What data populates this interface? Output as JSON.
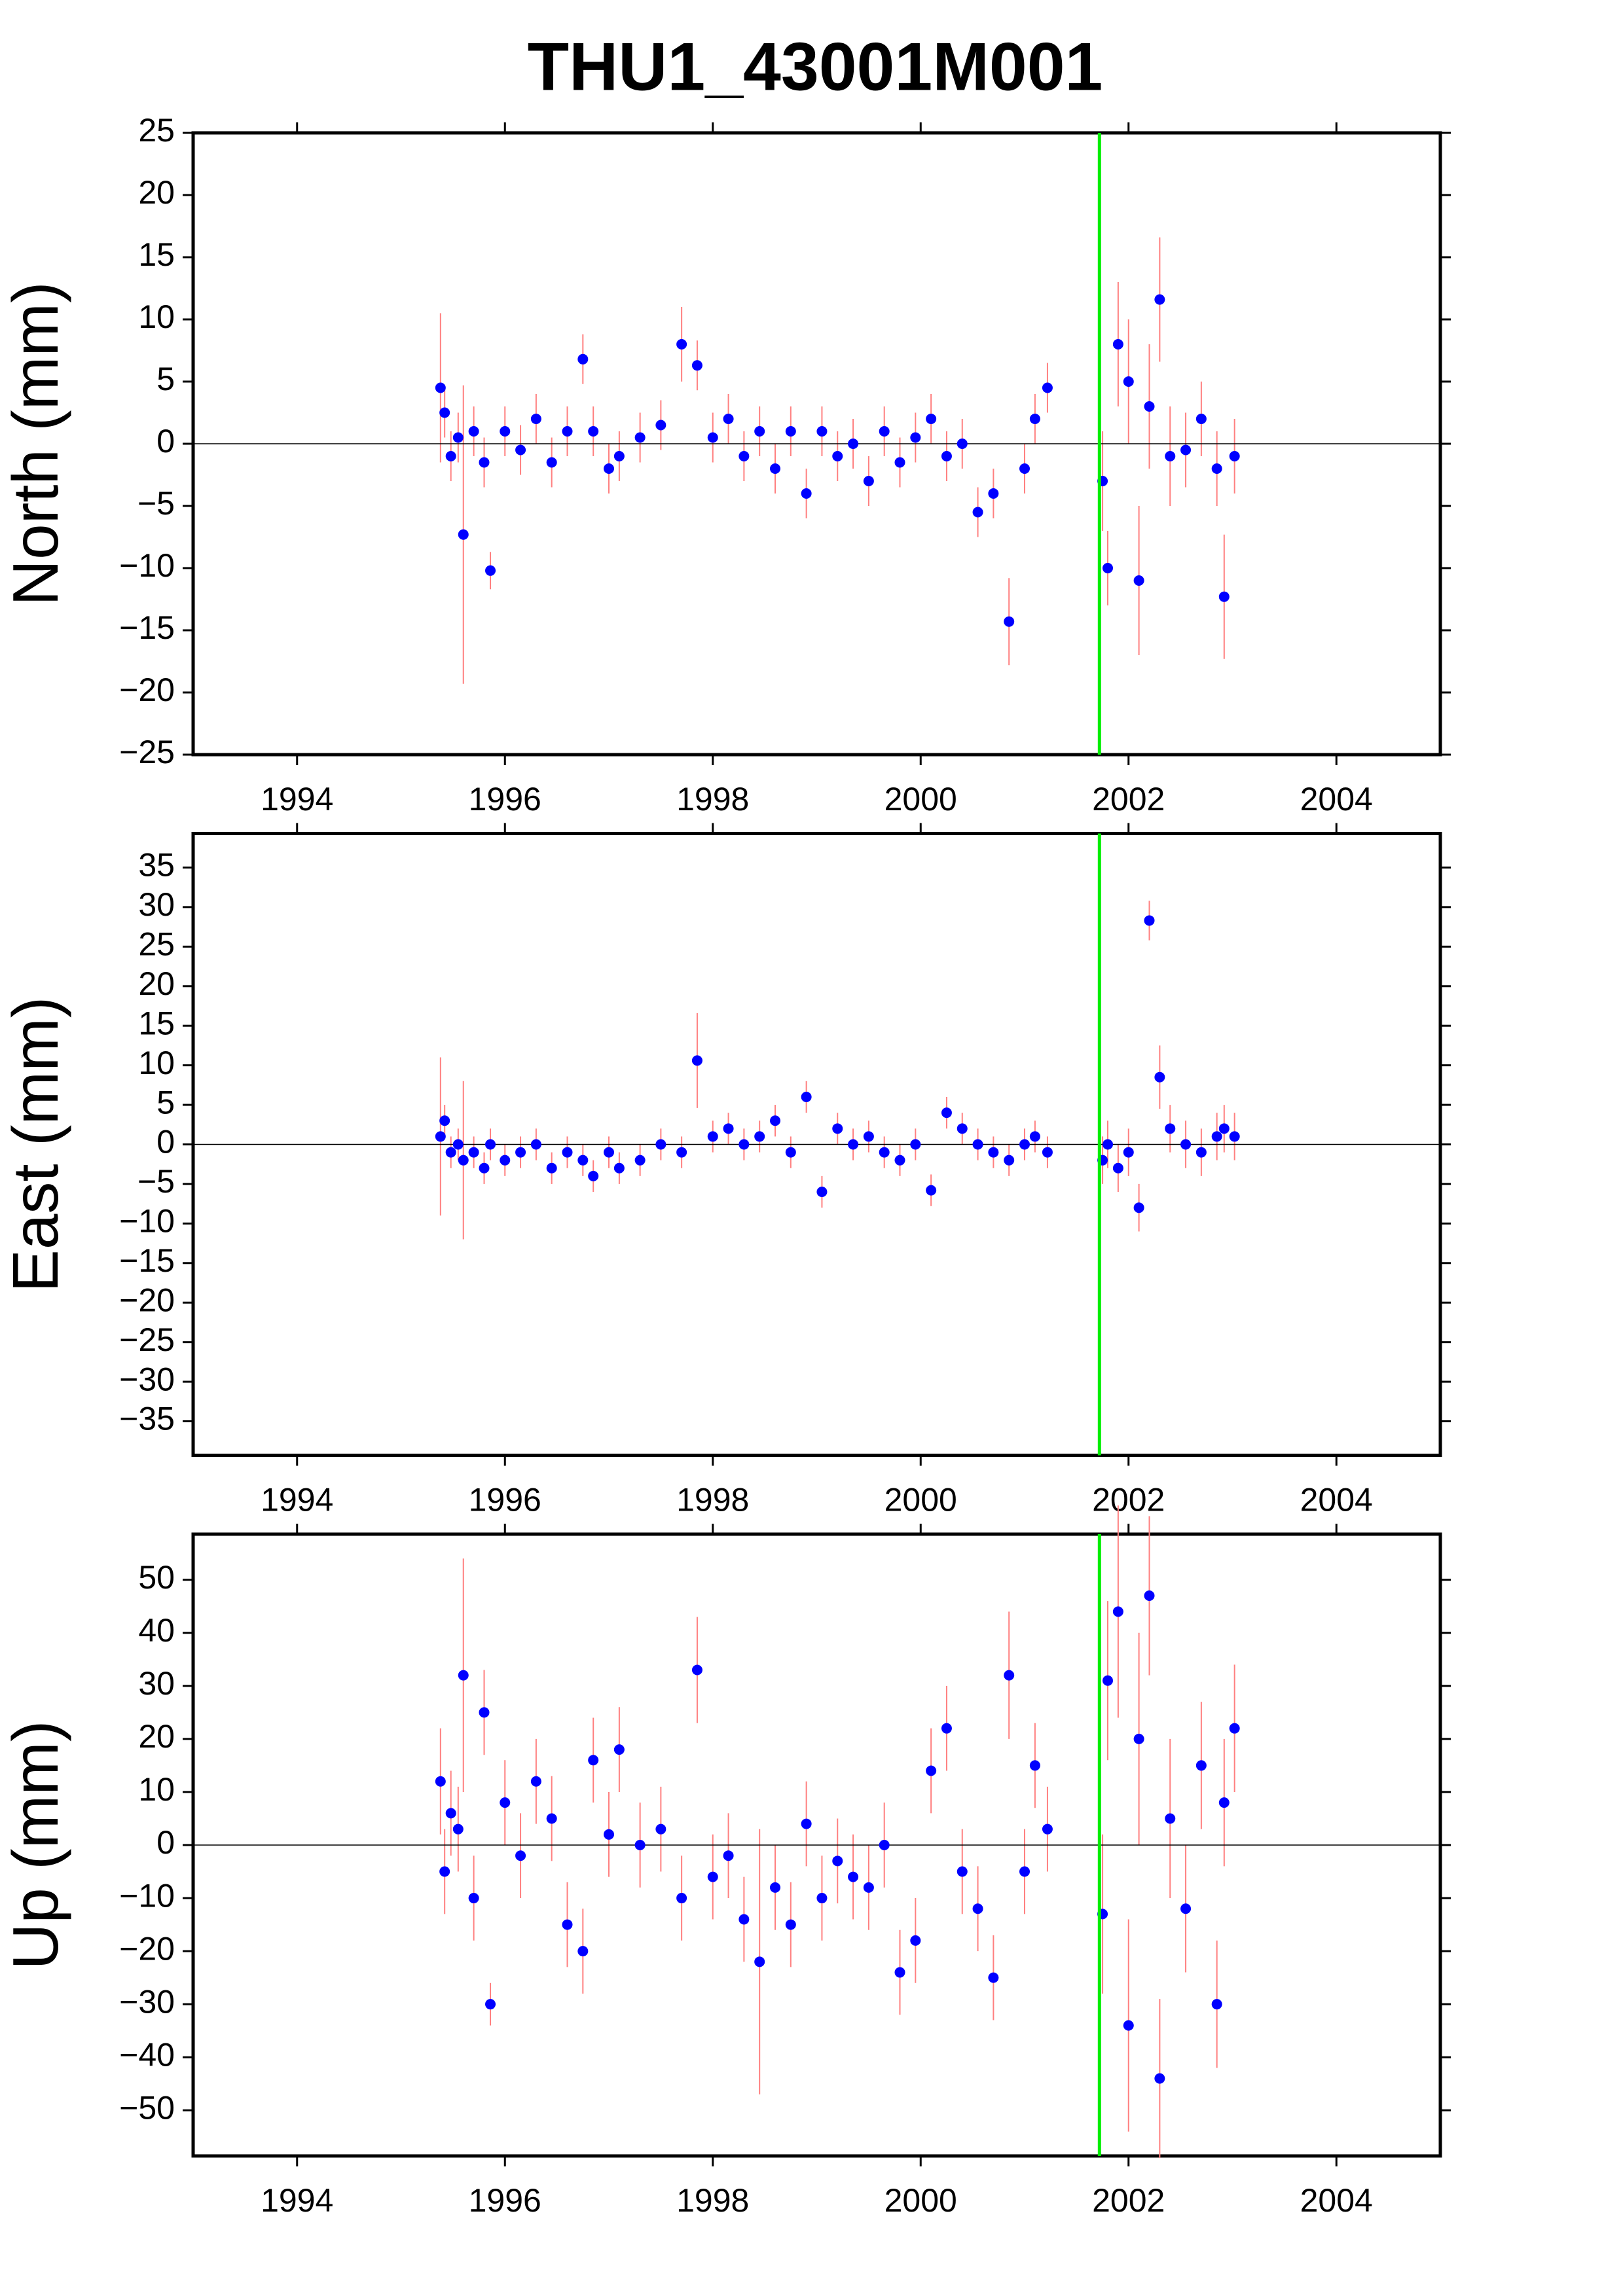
{
  "title": "THU1_43001M001",
  "chart_data": [
    {
      "type": "scatter",
      "ylabel": "North (mm)",
      "color": "#0000ff",
      "error_color": "#ff8080",
      "event_x": 2001.72,
      "event_color": "#00ee00",
      "hline": 0,
      "xlim": [
        1993,
        2005
      ],
      "xticks": [
        1994,
        1996,
        1998,
        2000,
        2002,
        2004
      ],
      "ylim": [
        -25,
        25
      ],
      "yticks": [
        {
          "value": -25,
          "label": "−25"
        },
        {
          "value": -20,
          "label": "−20"
        },
        {
          "value": -15,
          "label": "−15"
        },
        {
          "value": -10,
          "label": "−10"
        },
        {
          "value": -5,
          "label": "−5"
        },
        0,
        5,
        10,
        15,
        20,
        25
      ],
      "x": [
        1995.38,
        1995.42,
        1995.48,
        1995.55,
        1995.6,
        1995.7,
        1995.8,
        1995.86,
        1996.0,
        1996.15,
        1996.3,
        1996.45,
        1996.6,
        1996.75,
        1996.85,
        1997.0,
        1997.1,
        1997.3,
        1997.5,
        1997.7,
        1997.85,
        1998.0,
        1998.15,
        1998.3,
        1998.45,
        1998.6,
        1998.75,
        1998.9,
        1999.05,
        1999.2,
        1999.35,
        1999.5,
        1999.65,
        1999.8,
        1999.95,
        2000.1,
        2000.25,
        2000.4,
        2000.55,
        2000.7,
        2000.85,
        2001.0,
        2001.1,
        2001.22,
        2001.75,
        2001.8,
        2001.9,
        2002.0,
        2002.1,
        2002.2,
        2002.3,
        2002.4,
        2002.55,
        2002.7,
        2002.85,
        2002.92,
        2003.02
      ],
      "values": [
        4.5,
        2.5,
        -1,
        0.5,
        -7.3,
        1,
        -1.5,
        -10.2,
        1,
        -0.5,
        2,
        -1.5,
        1,
        6.8,
        1,
        -2,
        -1,
        0.5,
        1.5,
        8,
        6.3,
        0.5,
        2,
        -1,
        1,
        -2,
        1,
        -4,
        1,
        -1,
        0,
        -3,
        1,
        -1.5,
        0.5,
        2,
        -1,
        0,
        -5.5,
        -4,
        -14.3,
        -2,
        2,
        4.5,
        -3,
        -10,
        8,
        5,
        -11,
        3,
        11.6,
        -1,
        -0.5,
        2,
        -2,
        -12.3,
        -1
      ],
      "errors": [
        6,
        2,
        2,
        2,
        12,
        2,
        2,
        1.5,
        2,
        2,
        2,
        2,
        2,
        2,
        2,
        2,
        2,
        2,
        2,
        3,
        2,
        2,
        2,
        2,
        2,
        2,
        2,
        2,
        2,
        2,
        2,
        2,
        2,
        2,
        2,
        2,
        2,
        2,
        2,
        2,
        3.5,
        2,
        2,
        2,
        4,
        3,
        5,
        5,
        6,
        5,
        5,
        4,
        3,
        3,
        3,
        5,
        3
      ]
    },
    {
      "type": "scatter",
      "ylabel": "East (mm)",
      "color": "#0000ff",
      "error_color": "#ff8080",
      "event_x": 2001.72,
      "event_color": "#00ee00",
      "hline": 0,
      "xlim": [
        1993,
        2005
      ],
      "xticks": [
        1994,
        1996,
        1998,
        2000,
        2002,
        2004
      ],
      "ylim": [
        -39.3,
        39.3
      ],
      "yticks": [
        {
          "value": -35,
          "label": "−35"
        },
        {
          "value": -30,
          "label": "−30"
        },
        {
          "value": -25,
          "label": "−25"
        },
        {
          "value": -20,
          "label": "−20"
        },
        {
          "value": -15,
          "label": "−15"
        },
        {
          "value": -10,
          "label": "−10"
        },
        {
          "value": -5,
          "label": "−5"
        },
        0,
        5,
        10,
        15,
        20,
        25,
        30,
        35
      ],
      "x": [
        1995.38,
        1995.42,
        1995.48,
        1995.55,
        1995.6,
        1995.7,
        1995.8,
        1995.86,
        1996.0,
        1996.15,
        1996.3,
        1996.45,
        1996.6,
        1996.75,
        1996.85,
        1997.0,
        1997.1,
        1997.3,
        1997.5,
        1997.7,
        1997.85,
        1998.0,
        1998.15,
        1998.3,
        1998.45,
        1998.6,
        1998.75,
        1998.9,
        1999.05,
        1999.2,
        1999.35,
        1999.5,
        1999.65,
        1999.8,
        1999.95,
        2000.1,
        2000.25,
        2000.4,
        2000.55,
        2000.7,
        2000.85,
        2001.0,
        2001.1,
        2001.22,
        2001.75,
        2001.8,
        2001.9,
        2002.0,
        2002.1,
        2002.2,
        2002.3,
        2002.4,
        2002.55,
        2002.7,
        2002.85,
        2002.92,
        2003.02
      ],
      "values": [
        1,
        3,
        -1,
        0,
        -2,
        -1,
        -3,
        0,
        -2,
        -1,
        0,
        -3,
        -1,
        -2,
        -4,
        -1,
        -3,
        -2,
        0,
        -1,
        10.6,
        1,
        2,
        0,
        1,
        3,
        -1,
        6,
        -6,
        2,
        0,
        1,
        -1,
        -2,
        0,
        -5.8,
        4,
        2,
        0,
        -1,
        -2,
        0,
        1,
        -1,
        -2,
        0,
        -3,
        -1,
        -8,
        28.3,
        8.5,
        2,
        0,
        -1,
        1,
        2,
        1
      ],
      "errors": [
        10,
        2,
        2,
        2,
        10,
        2,
        2,
        2,
        2,
        2,
        2,
        2,
        2,
        2,
        2,
        2,
        2,
        2,
        2,
        2,
        6,
        2,
        2,
        2,
        2,
        2,
        2,
        2,
        2,
        2,
        2,
        2,
        2,
        2,
        2,
        2,
        2,
        2,
        2,
        2,
        2,
        2,
        2,
        2,
        3,
        3,
        3,
        3,
        3,
        2.5,
        4,
        3,
        3,
        3,
        3,
        3,
        3
      ]
    },
    {
      "type": "scatter",
      "ylabel": "Up (mm)",
      "color": "#0000ff",
      "error_color": "#ff8080",
      "event_x": 2001.72,
      "event_color": "#00ee00",
      "hline": 0,
      "xlim": [
        1993,
        2005
      ],
      "xticks": [
        1994,
        1996,
        1998,
        2000,
        2002,
        2004
      ],
      "ylim": [
        -58.6,
        58.6
      ],
      "yticks": [
        {
          "value": -50,
          "label": "−50"
        },
        {
          "value": -40,
          "label": "−40"
        },
        {
          "value": -30,
          "label": "−30"
        },
        {
          "value": -20,
          "label": "−20"
        },
        {
          "value": -10,
          "label": "−10"
        },
        0,
        10,
        20,
        30,
        40,
        50
      ],
      "x": [
        1995.38,
        1995.42,
        1995.48,
        1995.55,
        1995.6,
        1995.7,
        1995.8,
        1995.86,
        1996.0,
        1996.15,
        1996.3,
        1996.45,
        1996.6,
        1996.75,
        1996.85,
        1997.0,
        1997.1,
        1997.3,
        1997.5,
        1997.7,
        1997.85,
        1998.0,
        1998.15,
        1998.3,
        1998.45,
        1998.6,
        1998.75,
        1998.9,
        1999.05,
        1999.2,
        1999.35,
        1999.5,
        1999.65,
        1999.8,
        1999.95,
        2000.1,
        2000.25,
        2000.4,
        2000.55,
        2000.7,
        2000.85,
        2001.0,
        2001.1,
        2001.22,
        2001.75,
        2001.8,
        2001.9,
        2002.0,
        2002.1,
        2002.2,
        2002.3,
        2002.4,
        2002.55,
        2002.7,
        2002.85,
        2002.92,
        2003.02
      ],
      "values": [
        12,
        -5,
        6,
        3,
        32,
        -10,
        25,
        -30,
        8,
        -2,
        12,
        5,
        -15,
        -20,
        16,
        2,
        18,
        0,
        3,
        -10,
        33,
        -6,
        -2,
        -14,
        -22,
        -8,
        -15,
        4,
        -10,
        -3,
        -6,
        -8,
        0,
        -24,
        -18,
        14,
        22,
        -5,
        -12,
        -25,
        32,
        -5,
        15,
        3,
        -13,
        31,
        44,
        -34,
        20,
        47,
        -44,
        5,
        -12,
        15,
        -30,
        8,
        22
      ],
      "errors": [
        10,
        8,
        8,
        8,
        22,
        8,
        8,
        4,
        8,
        8,
        8,
        8,
        8,
        8,
        8,
        8,
        8,
        8,
        8,
        8,
        10,
        8,
        8,
        8,
        25,
        8,
        8,
        8,
        8,
        8,
        8,
        8,
        8,
        8,
        8,
        8,
        8,
        8,
        8,
        8,
        12,
        8,
        8,
        8,
        15,
        15,
        20,
        20,
        20,
        15,
        15,
        15,
        12,
        12,
        12,
        12,
        12
      ]
    }
  ]
}
